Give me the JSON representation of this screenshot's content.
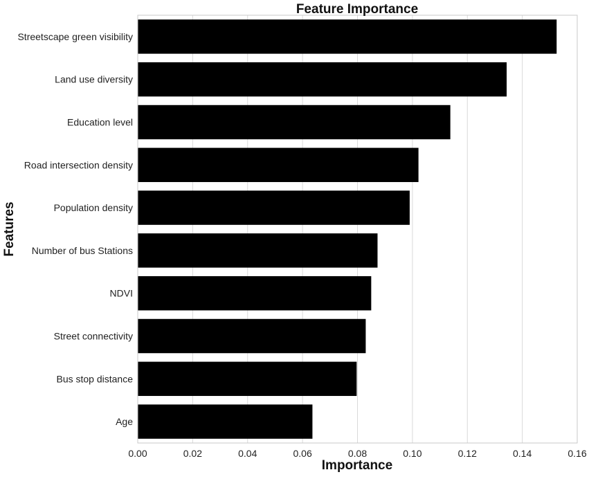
{
  "chart_data": {
    "type": "bar",
    "orientation": "horizontal",
    "title": "Feature Importance",
    "xlabel": "Importance",
    "ylabel": "Features",
    "categories": [
      "Streetscape green visibility",
      "Land use diversity",
      "Education level",
      "Road intersection density",
      "Population density",
      "Number of bus Stations",
      "NDVI",
      "Street connectivity",
      "Bus stop distance",
      "Age"
    ],
    "values": [
      0.1525,
      0.1343,
      0.1138,
      0.1022,
      0.099,
      0.0873,
      0.085,
      0.083,
      0.0797,
      0.0636
    ],
    "xlim": [
      0,
      0.16
    ],
    "xticks": [
      "0.00",
      "0.02",
      "0.04",
      "0.06",
      "0.08",
      "0.10",
      "0.12",
      "0.14",
      "0.16"
    ],
    "grid": true,
    "bar_color": "#000000"
  }
}
